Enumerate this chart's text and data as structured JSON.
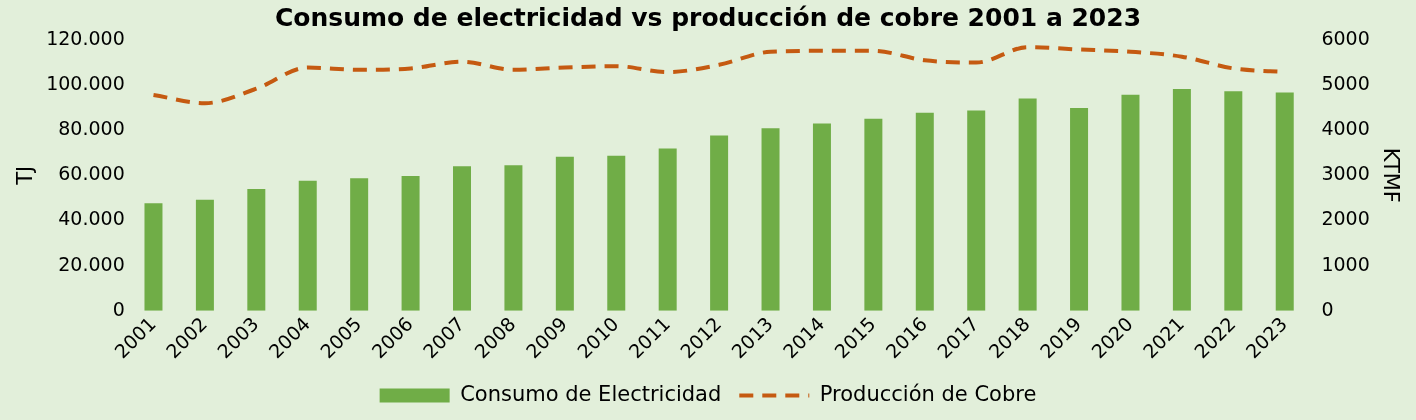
{
  "chart_data": {
    "type": "bar",
    "title": "Consumo de electricidad vs producción de cobre 2001 a 2023",
    "ylabel": "TJ",
    "y2label": "KTMF",
    "categories": [
      "2001",
      "2002",
      "2003",
      "2004",
      "2005",
      "2006",
      "2007",
      "2008",
      "2009",
      "2010",
      "2011",
      "2012",
      "2013",
      "2014",
      "2015",
      "2016",
      "2017",
      "2018",
      "2019",
      "2020",
      "2021",
      "2022",
      "2023"
    ],
    "series": [
      {
        "name": "Consumo de Electricidad",
        "color": "#70ad47",
        "values": [
          47600,
          49200,
          53900,
          57600,
          58700,
          59700,
          64000,
          64500,
          68200,
          68700,
          71900,
          77700,
          80900,
          83000,
          85100,
          87800,
          88800,
          94100,
          89900,
          95700,
          98300,
          97300,
          96700
        ]
      },
      {
        "name": "Producción de Cobre",
        "type": "line",
        "axis": "y2",
        "color": "#c55a11",
        "line_style": "dashed",
        "marker": "none",
        "values": [
          4780,
          4600,
          4920,
          5390,
          5340,
          5370,
          5520,
          5340,
          5390,
          5420,
          5290,
          5450,
          5740,
          5760,
          5760,
          5550,
          5500,
          5840,
          5790,
          5740,
          5630,
          5370,
          5290
        ]
      }
    ],
    "ylim": [
      0,
      120000
    ],
    "yticks": [
      0,
      {
        "value": 20000,
        "label": "20.000"
      },
      {
        "value": 40000,
        "label": "40.000"
      },
      {
        "value": 60000,
        "label": "60.000"
      },
      {
        "value": 80000,
        "label": "80.000"
      },
      {
        "value": 100000,
        "label": "100.000"
      },
      {
        "value": 120000,
        "label": "120.000"
      }
    ],
    "y2lim": [
      0,
      6000
    ],
    "y2ticks": [
      0,
      1000,
      2000,
      3000,
      4000,
      5000,
      6000
    ],
    "grid": false,
    "legend": "bottom"
  }
}
